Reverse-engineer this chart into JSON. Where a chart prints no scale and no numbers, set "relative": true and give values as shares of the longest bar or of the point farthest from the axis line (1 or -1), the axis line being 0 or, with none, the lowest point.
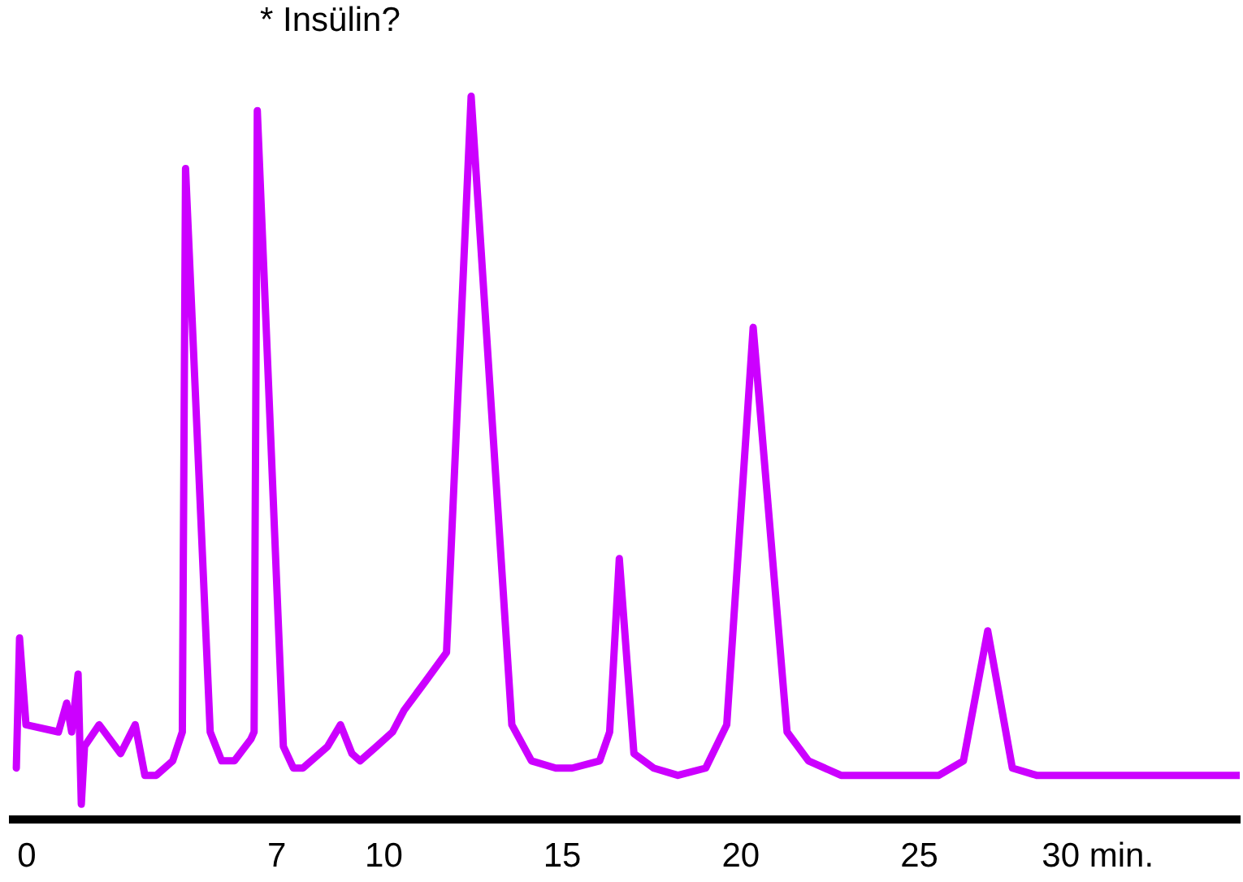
{
  "chart_data": {
    "type": "line",
    "annotations": [
      "* Insülin?"
    ],
    "relative": true,
    "color": "#cc00ff",
    "grid": false,
    "xlim": [
      -0.5,
      34
    ],
    "xticks": [
      0,
      7,
      10,
      15,
      20,
      25,
      {
        "value": 30,
        "label": "30 min."
      }
    ],
    "x": [
      -0.27,
      -0.18,
      0,
      0.91,
      1.14,
      1.28,
      1.46,
      1.55,
      1.64,
      2.05,
      2.65,
      3.06,
      3.33,
      3.65,
      4.11,
      4.38,
      4.47,
      5.16,
      5.48,
      5.84,
      6.3,
      6.39,
      6.48,
      7.21,
      7.49,
      7.76,
      8.45,
      8.81,
      9.13,
      9.36,
      9.82,
      10.27,
      10.59,
      11.19,
      11.78,
      12.47,
      13.61,
      14.16,
      14.84,
      15.3,
      16.07,
      16.35,
      16.62,
      17.03,
      17.58,
      18.26,
      19.04,
      19.63,
      20.37,
      21.32,
      21.92,
      22.83,
      23.74,
      25.57,
      26.26,
      26.94,
      27.63,
      28.31,
      29.22,
      34
    ],
    "values": [
      0.07,
      0.25,
      0.13,
      0.12,
      0.16,
      0.12,
      0.2,
      0.02,
      0.1,
      0.13,
      0.09,
      0.13,
      0.06,
      0.06,
      0.08,
      0.12,
      0.9,
      0.12,
      0.08,
      0.08,
      0.11,
      0.12,
      0.98,
      0.1,
      0.07,
      0.07,
      0.1,
      0.13,
      0.09,
      0.08,
      0.1,
      0.12,
      0.15,
      0.19,
      0.23,
      1.0,
      0.13,
      0.08,
      0.07,
      0.07,
      0.08,
      0.12,
      0.36,
      0.09,
      0.07,
      0.06,
      0.07,
      0.13,
      0.68,
      0.12,
      0.08,
      0.06,
      0.06,
      0.06,
      0.08,
      0.26,
      0.07,
      0.06,
      0.06,
      0.06
    ]
  }
}
